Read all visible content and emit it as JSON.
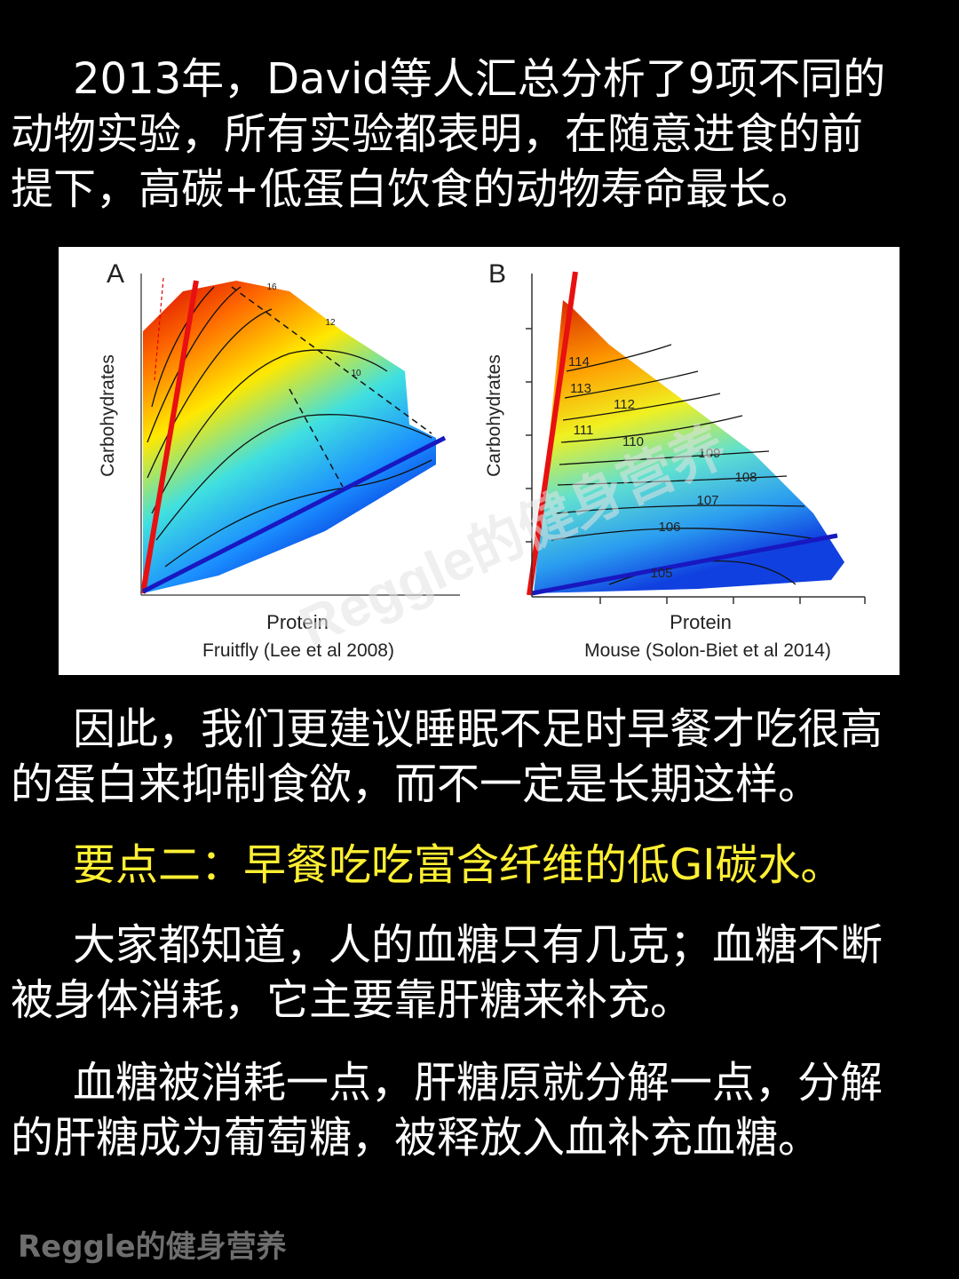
{
  "paragraphs": [
    {
      "lines": [
        "2013年，David等人汇总分析了9项不同的",
        "动物实验，所有实验都表明，在随意进食的前",
        "提下，高碳+低蛋白饮食的动物寿命最长。"
      ],
      "highlight": false
    },
    {
      "lines": [
        "因此，我们更建议睡眠不足时早餐才吃很高",
        "的蛋白来抑制食欲，而不一定是长期这样。"
      ],
      "highlight": false
    },
    {
      "lines": [
        "要点二：早餐吃吃富含纤维的低GI碳水。"
      ],
      "highlight": true
    },
    {
      "lines": [
        "大家都知道，人的血糖只有几克；血糖不断",
        "被身体消耗，它主要靠肝糖来补充。"
      ],
      "highlight": false
    },
    {
      "lines": [
        "血糖被消耗一点，肝糖原就分解一点，分解",
        "的肝糖成为葡萄糖，被释放入血补充血糖。"
      ],
      "highlight": false
    }
  ],
  "figure": {
    "panels": [
      {
        "label": "A",
        "y_label": "Carbohydrates",
        "x_label": "Protein",
        "caption": "Fruitfly (Lee et al 2008)",
        "contour_labels": [
          "16",
          "12",
          "10"
        ]
      },
      {
        "label": "B",
        "y_label": "Carbohydrates",
        "x_label": "Protein",
        "caption": "Mouse (Solon-Biet et al 2014)",
        "contour_labels": [
          "114",
          "113",
          "112",
          "111",
          "110",
          "109",
          "108",
          "107",
          "106",
          "105"
        ]
      }
    ],
    "watermark": "Reggle的健身营养"
  },
  "footer": {
    "watermark": "Reggle的健身营养"
  }
}
